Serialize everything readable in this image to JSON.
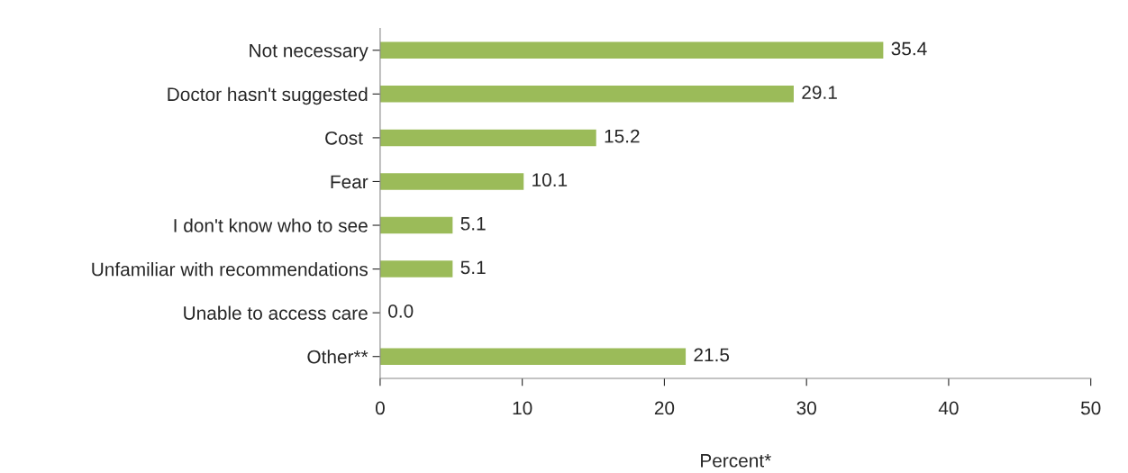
{
  "chart_data": {
    "type": "bar",
    "orientation": "horizontal",
    "xlabel": "Percent*",
    "categories": [
      "Not necessary",
      "Doctor hasn't suggested",
      "Cost ",
      "Fear",
      "I don't know who to see",
      "Unfamiliar with recommendations",
      "Unable to access care",
      "Other**"
    ],
    "values": [
      35.4,
      29.1,
      15.2,
      10.1,
      5.1,
      5.1,
      0.0,
      21.5
    ],
    "value_labels": [
      "35.4",
      "29.1",
      "15.2",
      "10.1",
      "5.1",
      "5.1",
      "0.0",
      "21.5"
    ],
    "color": "#9bbb59",
    "xlim": [
      0,
      50
    ],
    "xticks": [
      0,
      10,
      20,
      30,
      40,
      50
    ],
    "grid": false,
    "legend": false
  }
}
